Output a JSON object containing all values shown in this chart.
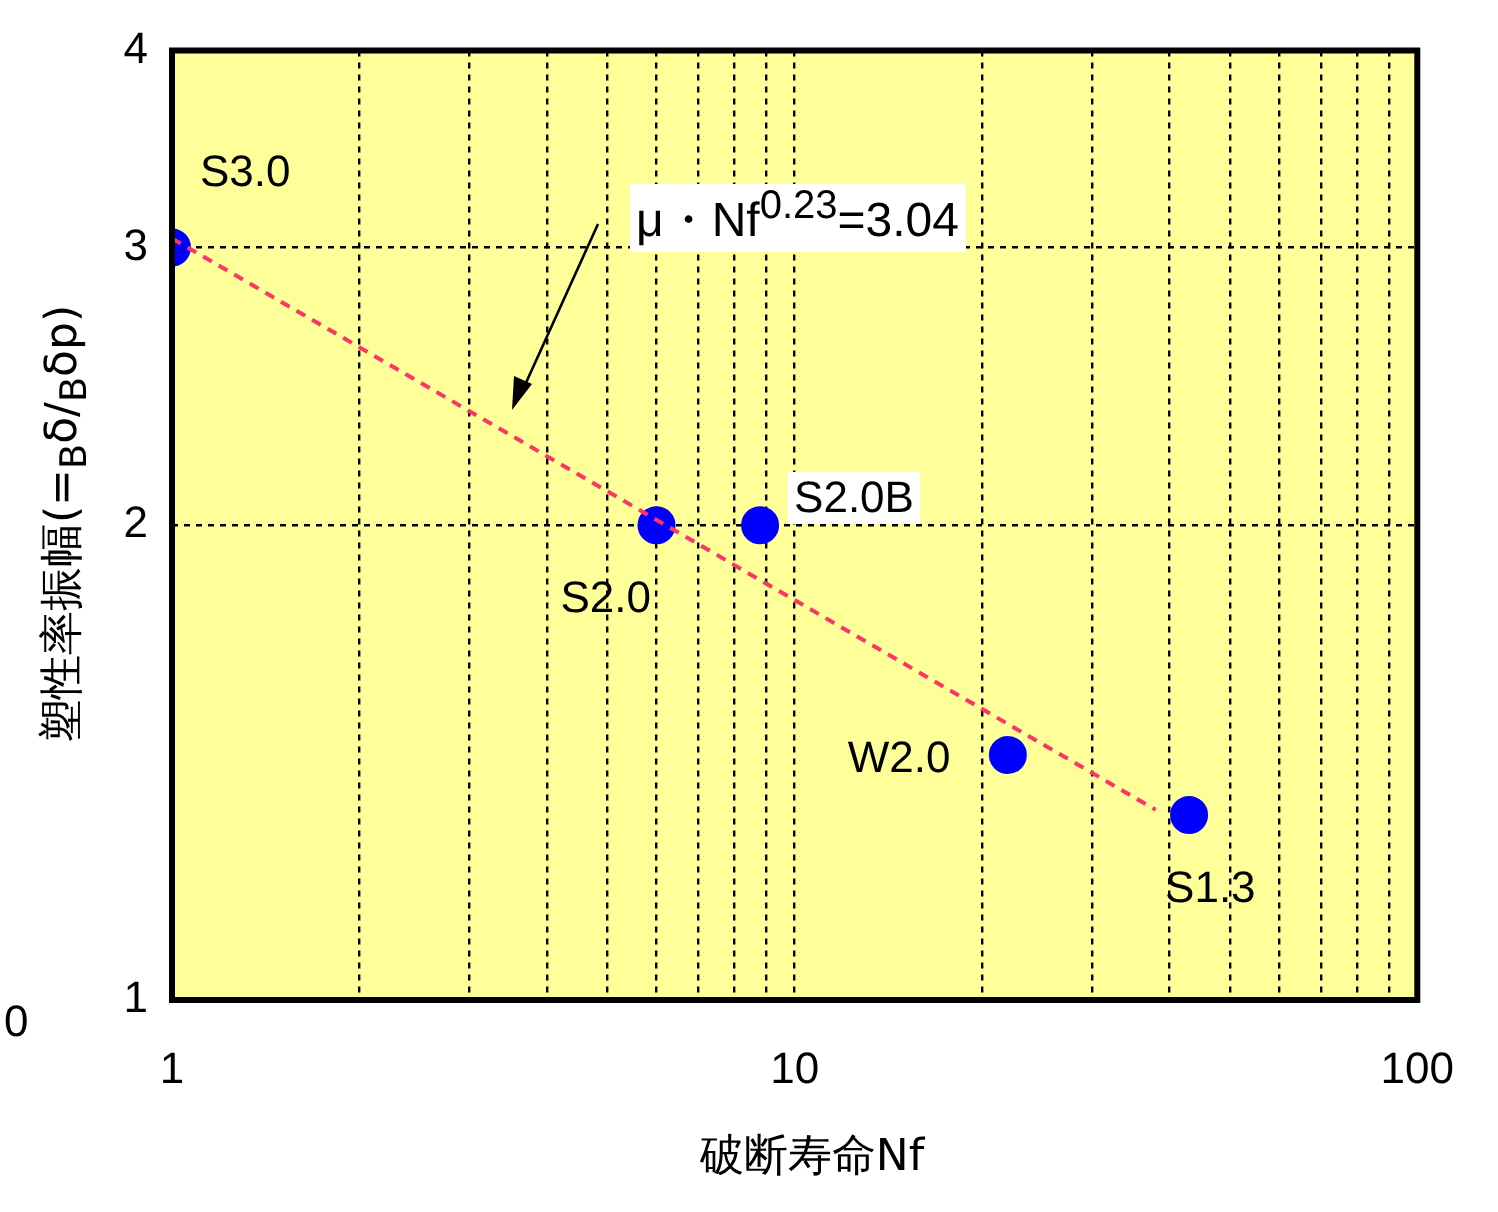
{
  "chart_data": {
    "type": "scatter",
    "xlabel": "破断寿命Nf",
    "ylabel": "塑性率振幅(=$_{B}$δ/$_{B}$δp)",
    "log": "xy",
    "grid": true,
    "marker": "circle",
    "xlim": [
      1,
      100
    ],
    "ylim": [
      1,
      4
    ],
    "xticks": [
      1,
      {
        "value": 2,
        "label": null
      },
      {
        "value": 3,
        "label": null
      },
      {
        "value": 4,
        "label": null
      },
      {
        "value": 5,
        "label": null
      },
      {
        "value": 6,
        "label": null
      },
      {
        "value": 7,
        "label": null
      },
      {
        "value": 8,
        "label": null
      },
      {
        "value": 9,
        "label": null
      },
      10,
      {
        "value": 20,
        "label": null
      },
      {
        "value": 30,
        "label": null
      },
      {
        "value": 40,
        "label": null
      },
      {
        "value": 50,
        "label": null
      },
      {
        "value": 60,
        "label": null
      },
      {
        "value": 70,
        "label": null
      },
      {
        "value": 80,
        "label": null
      },
      {
        "value": 90,
        "label": null
      },
      100
    ],
    "yticks": [
      1,
      2,
      3,
      4
    ],
    "series": [
      {
        "color": "#0000ff",
        "x": [
          1,
          6,
          8.8,
          22,
          43
        ],
        "values": [
          3,
          2,
          2,
          1.43,
          1.31
        ]
      },
      {
        "type": "line",
        "color": "#ff3366",
        "line_style": "dashed",
        "marker": "none",
        "x": [
          1,
          38
        ],
        "values": [
          3.04,
          1.32
        ]
      }
    ],
    "annotations": [
      {
        "text": "S3.0",
        "x": 1,
        "y": 3
      },
      {
        "text": "S2.0",
        "x": 6,
        "y": 2
      },
      {
        "text": "S2.0B",
        "x": 8.8,
        "y": 2
      },
      {
        "text": "W2.0",
        "x": 22,
        "y": 1.43
      },
      {
        "text": "S1.3",
        "x": 43,
        "y": 1.31
      },
      "μ・Nf$^{0.23}$=3.04",
      "0"
    ]
  }
}
